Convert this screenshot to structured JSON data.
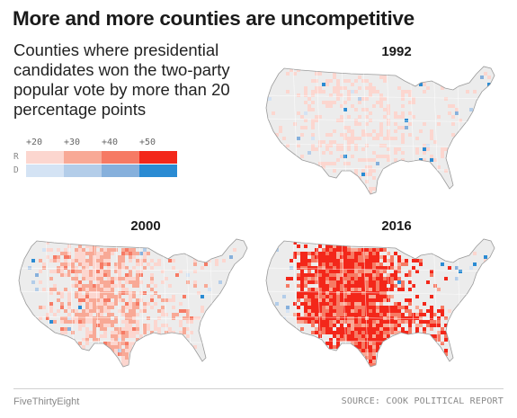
{
  "title": "More and more counties are uncompetitive",
  "subtitle": "Counties where presidential candidates won the two-party popular vote by more than 20 percentage points",
  "legend": {
    "ticks": [
      "+20",
      "+30",
      "+40",
      "+50"
    ],
    "rows": [
      {
        "label": "R",
        "colors": [
          "#fcd6cf",
          "#f8a996",
          "#f67a64",
          "#f3271a"
        ]
      },
      {
        "label": "D",
        "colors": [
          "#d4e3f4",
          "#b3cde9",
          "#86b0dc",
          "#2a8bd3"
        ]
      }
    ]
  },
  "maps": [
    {
      "year": "1992",
      "intensity": 0.18,
      "blue": 0.55
    },
    {
      "year": "2000",
      "intensity": 0.55,
      "blue": 0.25
    },
    {
      "year": "2016",
      "intensity": 0.9,
      "blue": 0.3
    }
  ],
  "colors": {
    "base": "#ececec",
    "border": "#ffffff",
    "outline": "#9a9a9a"
  },
  "footer": {
    "brand": "FiveThirtyEight",
    "source": "SOURCE: COOK POLITICAL REPORT"
  }
}
